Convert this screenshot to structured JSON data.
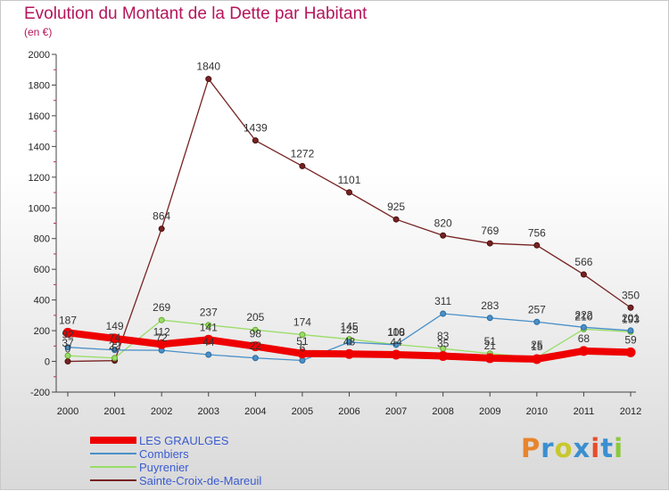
{
  "header": {
    "title": "Evolution du Montant de la Dette par Habitant",
    "subtitle": "(en €)"
  },
  "logo": {
    "letters": [
      "P",
      "r",
      "o",
      "x",
      "i",
      "t",
      "i"
    ],
    "colors": [
      "#e8842c",
      "#3a8fd0",
      "#c8c82c",
      "#3a8fd0",
      "#e84c2c",
      "#3a8fd0",
      "#8cc83c"
    ]
  },
  "chart_data": {
    "type": "line",
    "title": "Evolution du Montant de la Dette par Habitant",
    "subtitle": "(en €)",
    "xlabel": "",
    "ylabel": "",
    "x": [
      "2000",
      "2001",
      "2002",
      "2003",
      "2004",
      "2005",
      "2006",
      "2007",
      "2008",
      "2009",
      "2010",
      "2011",
      "2012"
    ],
    "ylim": [
      -200,
      2000
    ],
    "yticks": [
      -200,
      0,
      200,
      400,
      600,
      800,
      1000,
      1200,
      1400,
      1600,
      1800,
      2000
    ],
    "grid": false,
    "legend_position": "bottom-left",
    "series": [
      {
        "name": "LES GRAULGES",
        "color": "#ee0000",
        "values": [
          187,
          149,
          112,
          141,
          98,
          51,
          48,
          44,
          35,
          21,
          15,
          68,
          59
        ]
      },
      {
        "name": "Combiers",
        "color": "#4a90c8",
        "values": [
          92,
          74,
          72,
          44,
          22,
          6,
          125,
          108,
          311,
          283,
          257,
          222,
          201
        ]
      },
      {
        "name": "Puyrenier",
        "color": "#99dd66",
        "values": [
          37,
          22,
          269,
          237,
          205,
          174,
          145,
          110,
          83,
          51,
          25,
          210,
          193
        ]
      },
      {
        "name": "Sainte-Croix-de-Mareuil",
        "color": "#772222",
        "values": [
          0,
          5,
          864,
          1840,
          1439,
          1272,
          1101,
          925,
          820,
          769,
          756,
          566,
          350
        ]
      }
    ]
  }
}
